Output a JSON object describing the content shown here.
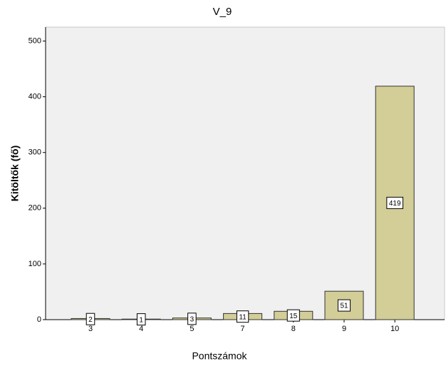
{
  "chart_data": {
    "type": "bar",
    "title": "V_9",
    "x_label": "Pontszámok",
    "y_label": "Kitöltők (fő)",
    "categories": [
      "3",
      "4",
      "5",
      "7",
      "8",
      "9",
      "10"
    ],
    "values": [
      2,
      1,
      3,
      11,
      15,
      51,
      419
    ],
    "color": "#d3ce97",
    "ylim": [
      0,
      525
    ],
    "yticks": [
      0,
      100,
      200,
      300,
      400,
      500
    ]
  }
}
